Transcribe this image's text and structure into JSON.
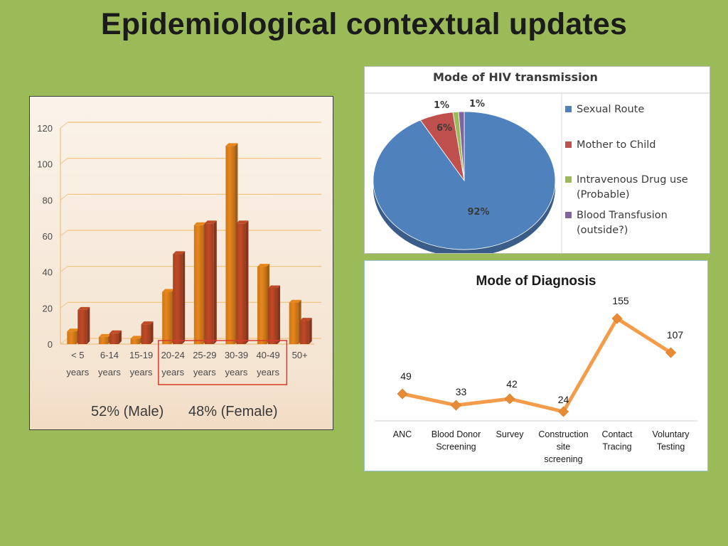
{
  "slide": {
    "title": "Epidemiological contextual updates"
  },
  "age_chart": {
    "gender_male": "52% (Male)",
    "gender_female": "48% (Female)",
    "colors": {
      "male": "#e8861c",
      "female": "#bf4a26"
    }
  },
  "pie_chart": {
    "colors": [
      "#4f81bd",
      "#c0504d",
      "#9bbb59",
      "#8064a2"
    ]
  },
  "line_chart": {
    "colors": {
      "line": "#f39c4a",
      "marker": "#e98a34"
    }
  },
  "chart_data": [
    {
      "type": "bar",
      "title": "",
      "categories": [
        "< 5 years",
        "6-14 years",
        "15-19 years",
        "20-24 years",
        "25-29 years",
        "30-39 years",
        "40-49 years",
        "50+"
      ],
      "series": [
        {
          "values": [
            7,
            4,
            3,
            29,
            66,
            110,
            43,
            23
          ]
        },
        {
          "values": [
            19,
            6,
            11,
            50,
            67,
            67,
            31,
            13
          ]
        }
      ],
      "yticks": [
        0,
        20,
        40,
        60,
        80,
        100,
        120
      ],
      "ylim": [
        0,
        120
      ],
      "grid": true,
      "highlight": [
        "20-24 years",
        "25-29 years",
        "30-39 years",
        "40-49 years"
      ]
    },
    {
      "type": "pie",
      "title": "Mode of HIV transmission",
      "labels": [
        "Sexual Route",
        "Mother to Child",
        "Intravenous Drug use (Probable)",
        "Blood Transfusion (outside?)"
      ],
      "values": [
        92,
        6,
        1,
        1
      ],
      "value_labels": [
        "92%",
        "6%",
        "1%",
        "1%"
      ],
      "legend": "right"
    },
    {
      "type": "line",
      "title": "Mode of Diagnosis",
      "categories": [
        "ANC",
        "Blood Donor Screening",
        "Survey",
        "Construction site screening",
        "Contact Tracing",
        "Voluntary Testing"
      ],
      "values": [
        49,
        33,
        42,
        24,
        155,
        107
      ],
      "grid": false,
      "legend": "none"
    }
  ]
}
